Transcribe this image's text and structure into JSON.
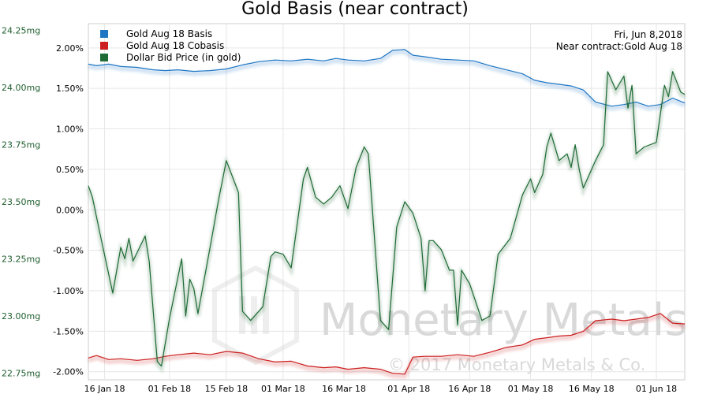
{
  "chart_data": {
    "type": "line",
    "title": "Gold Basis (near contract)",
    "info": {
      "date": "Fri, Jun 8,2018",
      "contract": "Near contract:Gold Aug 18"
    },
    "watermark": {
      "brand": "Monetary Metals",
      "copyright": "© 2017 Monetary Metals & Co."
    },
    "x_ticks": [
      "16 Jan 18",
      "01 Feb 18",
      "15 Feb 18",
      "01 Mar 18",
      "16 Mar 18",
      "01 Apr 18",
      "16 Apr 18",
      "01 May 18",
      "16 May 18",
      "01 Jun 18"
    ],
    "left_axis": {
      "unit": "mg",
      "range": [
        22.72,
        24.28
      ],
      "ticks": [
        "24.25mg",
        "24.00mg",
        "23.75mg",
        "23.50mg",
        "23.25mg",
        "23.00mg",
        "22.75mg"
      ],
      "tick_values": [
        24.25,
        24.0,
        23.75,
        23.5,
        23.25,
        23.0,
        22.75
      ]
    },
    "right_axis": {
      "unit": "%",
      "range": [
        -2.1,
        2.3
      ],
      "ticks": [
        "2.00%",
        "1.50%",
        "1.00%",
        "0.50%",
        "0.00%",
        "-0.50%",
        "-1.00%",
        "-1.50%",
        "-2.00%"
      ],
      "tick_values": [
        2.0,
        1.5,
        1.0,
        0.5,
        0.0,
        -0.5,
        -1.0,
        -1.5,
        -2.0
      ]
    },
    "x_range": [
      "2018-01-12",
      "2018-06-08"
    ],
    "grid": true,
    "legend_position": "top-left",
    "series": [
      {
        "name": "Gold Aug 18 Basis",
        "color": "#1f77c4",
        "axis": "right",
        "points": [
          [
            "2018-01-12",
            1.8
          ],
          [
            "2018-01-14",
            1.78
          ],
          [
            "2018-01-17",
            1.8
          ],
          [
            "2018-01-20",
            1.77
          ],
          [
            "2018-01-24",
            1.76
          ],
          [
            "2018-01-28",
            1.73
          ],
          [
            "2018-01-31",
            1.72
          ],
          [
            "2018-02-03",
            1.73
          ],
          [
            "2018-02-07",
            1.71
          ],
          [
            "2018-02-11",
            1.72
          ],
          [
            "2018-02-15",
            1.74
          ],
          [
            "2018-02-19",
            1.79
          ],
          [
            "2018-02-23",
            1.83
          ],
          [
            "2018-02-27",
            1.85
          ],
          [
            "2018-03-03",
            1.84
          ],
          [
            "2018-03-07",
            1.86
          ],
          [
            "2018-03-11",
            1.84
          ],
          [
            "2018-03-14",
            1.87
          ],
          [
            "2018-03-17",
            1.85
          ],
          [
            "2018-03-21",
            1.84
          ],
          [
            "2018-03-25",
            1.87
          ],
          [
            "2018-03-28",
            1.97
          ],
          [
            "2018-03-31",
            1.98
          ],
          [
            "2018-04-02",
            1.91
          ],
          [
            "2018-04-05",
            1.89
          ],
          [
            "2018-04-09",
            1.86
          ],
          [
            "2018-04-13",
            1.85
          ],
          [
            "2018-04-17",
            1.84
          ],
          [
            "2018-04-21",
            1.78
          ],
          [
            "2018-04-25",
            1.73
          ],
          [
            "2018-04-29",
            1.68
          ],
          [
            "2018-05-02",
            1.6
          ],
          [
            "2018-05-05",
            1.57
          ],
          [
            "2018-05-08",
            1.55
          ],
          [
            "2018-05-11",
            1.53
          ],
          [
            "2018-05-14",
            1.48
          ],
          [
            "2018-05-17",
            1.33
          ],
          [
            "2018-05-21",
            1.28
          ],
          [
            "2018-05-24",
            1.3
          ],
          [
            "2018-05-27",
            1.33
          ],
          [
            "2018-05-30",
            1.28
          ],
          [
            "2018-06-02",
            1.3
          ],
          [
            "2018-06-05",
            1.38
          ],
          [
            "2018-06-08",
            1.32
          ]
        ]
      },
      {
        "name": "Gold Aug 18 Cobasis",
        "color": "#cc1f1f",
        "axis": "right",
        "points": [
          [
            "2018-01-12",
            -1.83
          ],
          [
            "2018-01-14",
            -1.8
          ],
          [
            "2018-01-17",
            -1.85
          ],
          [
            "2018-01-20",
            -1.84
          ],
          [
            "2018-01-24",
            -1.86
          ],
          [
            "2018-01-28",
            -1.84
          ],
          [
            "2018-01-31",
            -1.81
          ],
          [
            "2018-02-03",
            -1.79
          ],
          [
            "2018-02-07",
            -1.77
          ],
          [
            "2018-02-11",
            -1.79
          ],
          [
            "2018-02-15",
            -1.75
          ],
          [
            "2018-02-19",
            -1.77
          ],
          [
            "2018-02-23",
            -1.84
          ],
          [
            "2018-02-27",
            -1.88
          ],
          [
            "2018-03-03",
            -1.87
          ],
          [
            "2018-03-07",
            -1.93
          ],
          [
            "2018-03-11",
            -1.95
          ],
          [
            "2018-03-14",
            -1.94
          ],
          [
            "2018-03-17",
            -1.97
          ],
          [
            "2018-03-21",
            -1.95
          ],
          [
            "2018-03-25",
            -1.97
          ],
          [
            "2018-03-28",
            -2.02
          ],
          [
            "2018-03-31",
            -2.03
          ],
          [
            "2018-04-02",
            -1.82
          ],
          [
            "2018-04-05",
            -1.81
          ],
          [
            "2018-04-09",
            -1.81
          ],
          [
            "2018-04-13",
            -1.79
          ],
          [
            "2018-04-17",
            -1.81
          ],
          [
            "2018-04-21",
            -1.76
          ],
          [
            "2018-04-25",
            -1.7
          ],
          [
            "2018-04-29",
            -1.67
          ],
          [
            "2018-05-02",
            -1.6
          ],
          [
            "2018-05-05",
            -1.58
          ],
          [
            "2018-05-08",
            -1.56
          ],
          [
            "2018-05-11",
            -1.55
          ],
          [
            "2018-05-14",
            -1.5
          ],
          [
            "2018-05-17",
            -1.37
          ],
          [
            "2018-05-21",
            -1.35
          ],
          [
            "2018-05-24",
            -1.37
          ],
          [
            "2018-05-27",
            -1.35
          ],
          [
            "2018-05-30",
            -1.33
          ],
          [
            "2018-06-02",
            -1.28
          ],
          [
            "2018-06-05",
            -1.4
          ],
          [
            "2018-06-08",
            -1.41
          ]
        ]
      },
      {
        "name": "Dollar Bid Price (in gold)",
        "color": "#1e6b35",
        "axis": "left",
        "points": [
          [
            "2018-01-12",
            23.57
          ],
          [
            "2018-01-13",
            23.52
          ],
          [
            "2018-01-15",
            23.35
          ],
          [
            "2018-01-18",
            23.1
          ],
          [
            "2018-01-20",
            23.3
          ],
          [
            "2018-01-21",
            23.25
          ],
          [
            "2018-01-22",
            23.34
          ],
          [
            "2018-01-23",
            23.24
          ],
          [
            "2018-01-26",
            23.35
          ],
          [
            "2018-01-27",
            23.24
          ],
          [
            "2018-01-29",
            22.8
          ],
          [
            "2018-01-30",
            22.78
          ],
          [
            "2018-02-01",
            22.99
          ],
          [
            "2018-02-04",
            23.25
          ],
          [
            "2018-02-05",
            23.0
          ],
          [
            "2018-02-06",
            23.16
          ],
          [
            "2018-02-07",
            23.12
          ],
          [
            "2018-02-08",
            23.01
          ],
          [
            "2018-02-11",
            23.3
          ],
          [
            "2018-02-13",
            23.5
          ],
          [
            "2018-02-15",
            23.68
          ],
          [
            "2018-02-18",
            23.54
          ],
          [
            "2018-02-19",
            23.02
          ],
          [
            "2018-02-20",
            23.0
          ],
          [
            "2018-02-21",
            22.98
          ],
          [
            "2018-02-24",
            23.04
          ],
          [
            "2018-02-26",
            23.26
          ],
          [
            "2018-02-27",
            23.28
          ],
          [
            "2018-03-01",
            23.27
          ],
          [
            "2018-03-03",
            23.21
          ],
          [
            "2018-03-06",
            23.6
          ],
          [
            "2018-03-07",
            23.65
          ],
          [
            "2018-03-09",
            23.52
          ],
          [
            "2018-03-11",
            23.49
          ],
          [
            "2018-03-13",
            23.52
          ],
          [
            "2018-03-15",
            23.57
          ],
          [
            "2018-03-17",
            23.47
          ],
          [
            "2018-03-19",
            23.65
          ],
          [
            "2018-03-21",
            23.74
          ],
          [
            "2018-03-22",
            23.71
          ],
          [
            "2018-03-25",
            22.98
          ],
          [
            "2018-03-27",
            22.94
          ],
          [
            "2018-03-29",
            23.39
          ],
          [
            "2018-03-31",
            23.5
          ],
          [
            "2018-04-02",
            23.45
          ],
          [
            "2018-04-04",
            23.34
          ],
          [
            "2018-04-05",
            23.11
          ],
          [
            "2018-04-06",
            23.33
          ],
          [
            "2018-04-07",
            23.33
          ],
          [
            "2018-04-09",
            23.29
          ],
          [
            "2018-04-11",
            23.2
          ],
          [
            "2018-04-12",
            23.2
          ],
          [
            "2018-04-13",
            22.96
          ],
          [
            "2018-04-14",
            23.2
          ],
          [
            "2018-04-16",
            23.14
          ],
          [
            "2018-04-19",
            22.98
          ],
          [
            "2018-04-21",
            23.0
          ],
          [
            "2018-04-23",
            23.27
          ],
          [
            "2018-04-26",
            23.34
          ],
          [
            "2018-04-29",
            23.53
          ],
          [
            "2018-05-01",
            23.6
          ],
          [
            "2018-05-02",
            23.54
          ],
          [
            "2018-05-04",
            23.62
          ],
          [
            "2018-05-05",
            23.74
          ],
          [
            "2018-05-06",
            23.8
          ],
          [
            "2018-05-08",
            23.68
          ],
          [
            "2018-05-10",
            23.71
          ],
          [
            "2018-05-11",
            23.65
          ],
          [
            "2018-05-12",
            23.75
          ],
          [
            "2018-05-13",
            23.64
          ],
          [
            "2018-05-14",
            23.56
          ],
          [
            "2018-05-17",
            23.68
          ],
          [
            "2018-05-19",
            23.75
          ],
          [
            "2018-05-20",
            24.07
          ],
          [
            "2018-05-22",
            23.99
          ],
          [
            "2018-05-24",
            24.05
          ],
          [
            "2018-05-25",
            23.91
          ],
          [
            "2018-05-26",
            24.01
          ],
          [
            "2018-05-27",
            23.71
          ],
          [
            "2018-05-29",
            23.74
          ],
          [
            "2018-06-01",
            23.76
          ],
          [
            "2018-06-03",
            24.01
          ],
          [
            "2018-06-04",
            23.96
          ],
          [
            "2018-06-05",
            24.07
          ],
          [
            "2018-06-07",
            23.98
          ],
          [
            "2018-06-08",
            23.97
          ]
        ]
      }
    ]
  }
}
